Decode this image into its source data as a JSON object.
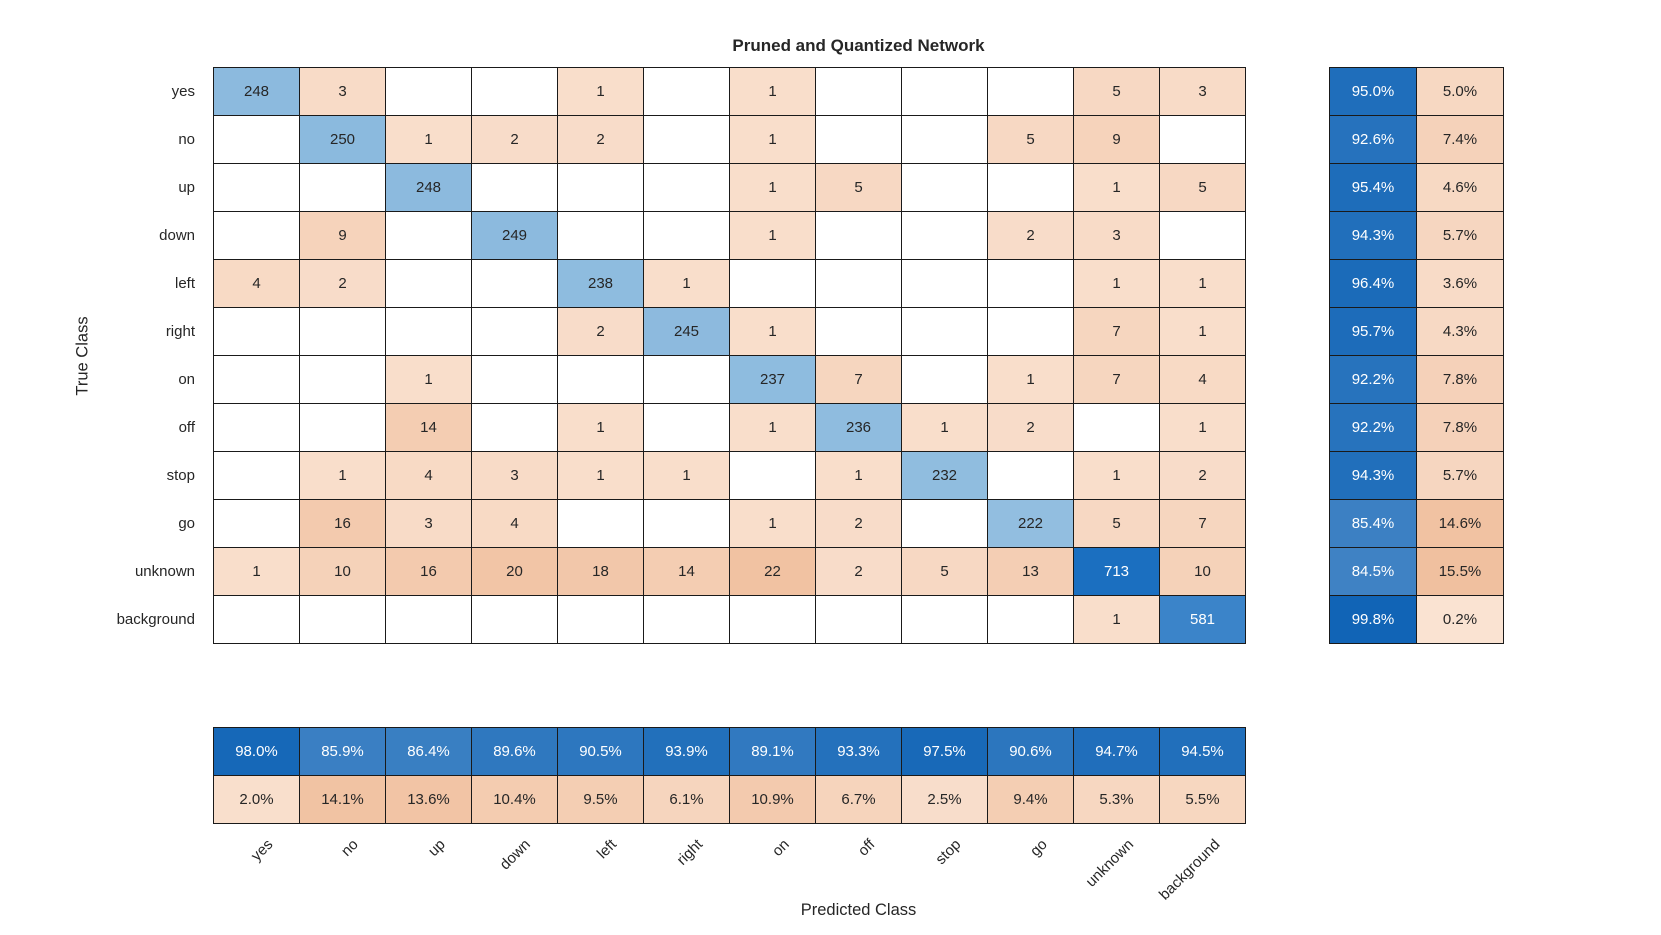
{
  "chart_data": {
    "type": "heatmap",
    "subtype": "confusion-matrix",
    "title": "Pruned and Quantized Network",
    "xlabel": "Predicted Class",
    "ylabel": "True Class",
    "x_tick_labels": [
      "yes",
      "no",
      "up",
      "down",
      "left",
      "right",
      "on",
      "off",
      "stop",
      "go",
      "unknown",
      "background"
    ],
    "y_tick_labels": [
      "yes",
      "no",
      "up",
      "down",
      "left",
      "right",
      "on",
      "off",
      "stop",
      "go",
      "unknown",
      "background"
    ],
    "matrix": [
      [
        248,
        3,
        null,
        null,
        1,
        null,
        1,
        null,
        null,
        null,
        5,
        3
      ],
      [
        null,
        250,
        1,
        2,
        2,
        null,
        1,
        null,
        null,
        5,
        9,
        null
      ],
      [
        null,
        null,
        248,
        null,
        null,
        null,
        1,
        5,
        null,
        null,
        1,
        5
      ],
      [
        null,
        9,
        null,
        249,
        null,
        null,
        1,
        null,
        null,
        2,
        3,
        null
      ],
      [
        4,
        2,
        null,
        null,
        238,
        1,
        null,
        null,
        null,
        null,
        1,
        1
      ],
      [
        null,
        null,
        null,
        null,
        2,
        245,
        1,
        null,
        null,
        null,
        7,
        1
      ],
      [
        null,
        null,
        1,
        null,
        null,
        null,
        237,
        7,
        null,
        1,
        7,
        4
      ],
      [
        null,
        null,
        14,
        null,
        1,
        null,
        1,
        236,
        1,
        2,
        null,
        1
      ],
      [
        null,
        1,
        4,
        3,
        1,
        1,
        null,
        1,
        232,
        null,
        1,
        2
      ],
      [
        null,
        16,
        3,
        4,
        null,
        null,
        1,
        2,
        null,
        222,
        5,
        7
      ],
      [
        1,
        10,
        16,
        20,
        18,
        14,
        22,
        2,
        5,
        13,
        713,
        10
      ],
      [
        null,
        null,
        null,
        null,
        null,
        null,
        null,
        null,
        null,
        null,
        1,
        581
      ]
    ],
    "row_summary": {
      "correct_pct": [
        95.0,
        92.6,
        95.4,
        94.3,
        96.4,
        95.7,
        92.2,
        92.2,
        94.3,
        85.4,
        84.5,
        99.8
      ],
      "incorrect_pct": [
        5.0,
        7.4,
        4.6,
        5.7,
        3.6,
        4.3,
        7.8,
        7.8,
        5.7,
        14.6,
        15.5,
        0.2
      ]
    },
    "col_summary": {
      "correct_pct": [
        98.0,
        85.9,
        86.4,
        89.6,
        90.5,
        93.9,
        89.1,
        93.3,
        97.5,
        90.6,
        94.7,
        94.5
      ],
      "incorrect_pct": [
        2.0,
        14.1,
        13.6,
        10.4,
        9.5,
        6.1,
        10.9,
        6.7,
        2.5,
        9.4,
        5.3,
        5.5
      ]
    },
    "layout": {
      "grid_on": true,
      "row_summary_position": "right",
      "col_summary_position": "bottom",
      "x_tick_rotation_deg": 45
    },
    "colors": {
      "matrix_blue_light": "#c8e2ee",
      "matrix_blue_dark": "#1b6fc0",
      "matrix_orange_light": "#f9dfcd",
      "matrix_orange_dark": "#f1c2a2",
      "summary_blue_light": "#4c8bc8",
      "summary_blue_dark": "#1064b6",
      "summary_orange_light": "#fae3d3",
      "summary_orange_dark": "#f0bf9d",
      "empty_cell": "#ffffff",
      "grid_line": "#1a1a1a",
      "text_dark": "#262626",
      "text_light": "#ffffff",
      "background": "#ffffff"
    }
  }
}
